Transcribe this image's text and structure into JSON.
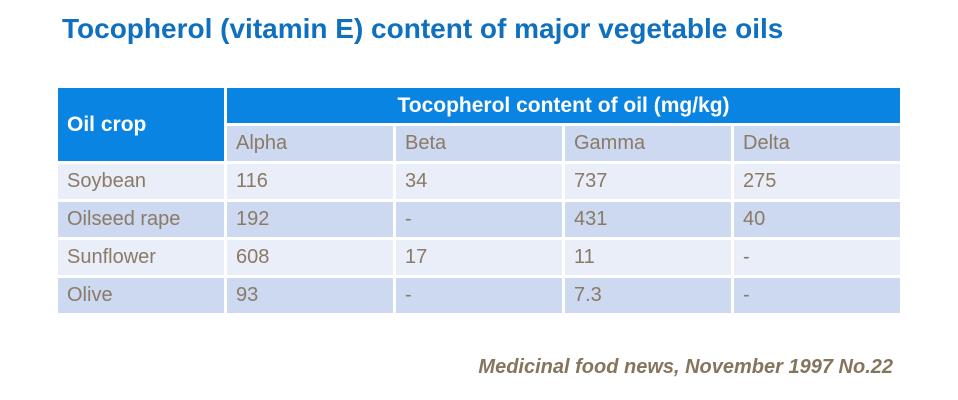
{
  "title": "Tocopherol (vitamin E) content of major vegetable oils",
  "table": {
    "corner_header": "Oil crop",
    "group_header": "Tocopherol content of oil (mg/kg)",
    "columns": [
      "Alpha",
      "Beta",
      "Gamma",
      "Delta"
    ],
    "rows": [
      {
        "crop": "Soybean",
        "values": [
          "116",
          "34",
          "737",
          "275"
        ]
      },
      {
        "crop": "Oilseed rape",
        "values": [
          "192",
          "-",
          "431",
          "40"
        ]
      },
      {
        "crop": "Sunflower",
        "values": [
          "608",
          "17",
          "11",
          "-"
        ]
      },
      {
        "crop": "Olive",
        "values": [
          "93",
          "-",
          "7.3",
          "-"
        ]
      }
    ]
  },
  "footer": {
    "source": "Medicinal food news, November 1997 No.22"
  },
  "colors": {
    "title_blue": "#1070c0",
    "header_blue": "#0984e3",
    "row_light": "#e9eef9",
    "row_alternate": "#ccd9f1",
    "table_text": "#8a7a66",
    "source_text": "#85755d",
    "background": "#ffffff"
  },
  "chart_data": {
    "type": "table",
    "title": "Tocopherol (vitamin E) content of major vegetable oils",
    "row_header_label": "Oil crop",
    "group_header": "Tocopherol content of oil (mg/kg)",
    "unit": "mg/kg",
    "columns": [
      "Alpha",
      "Beta",
      "Gamma",
      "Delta"
    ],
    "rows": [
      {
        "name": "Soybean",
        "values": [
          116,
          34,
          737,
          275
        ]
      },
      {
        "name": "Oilseed rape",
        "values": [
          192,
          null,
          431,
          40
        ]
      },
      {
        "name": "Sunflower",
        "values": [
          608,
          17,
          11,
          null
        ]
      },
      {
        "name": "Olive",
        "values": [
          93,
          null,
          7.3,
          null
        ]
      }
    ],
    "missing_value_symbol": "-",
    "source": "Medicinal food news, November 1997 No.22"
  }
}
